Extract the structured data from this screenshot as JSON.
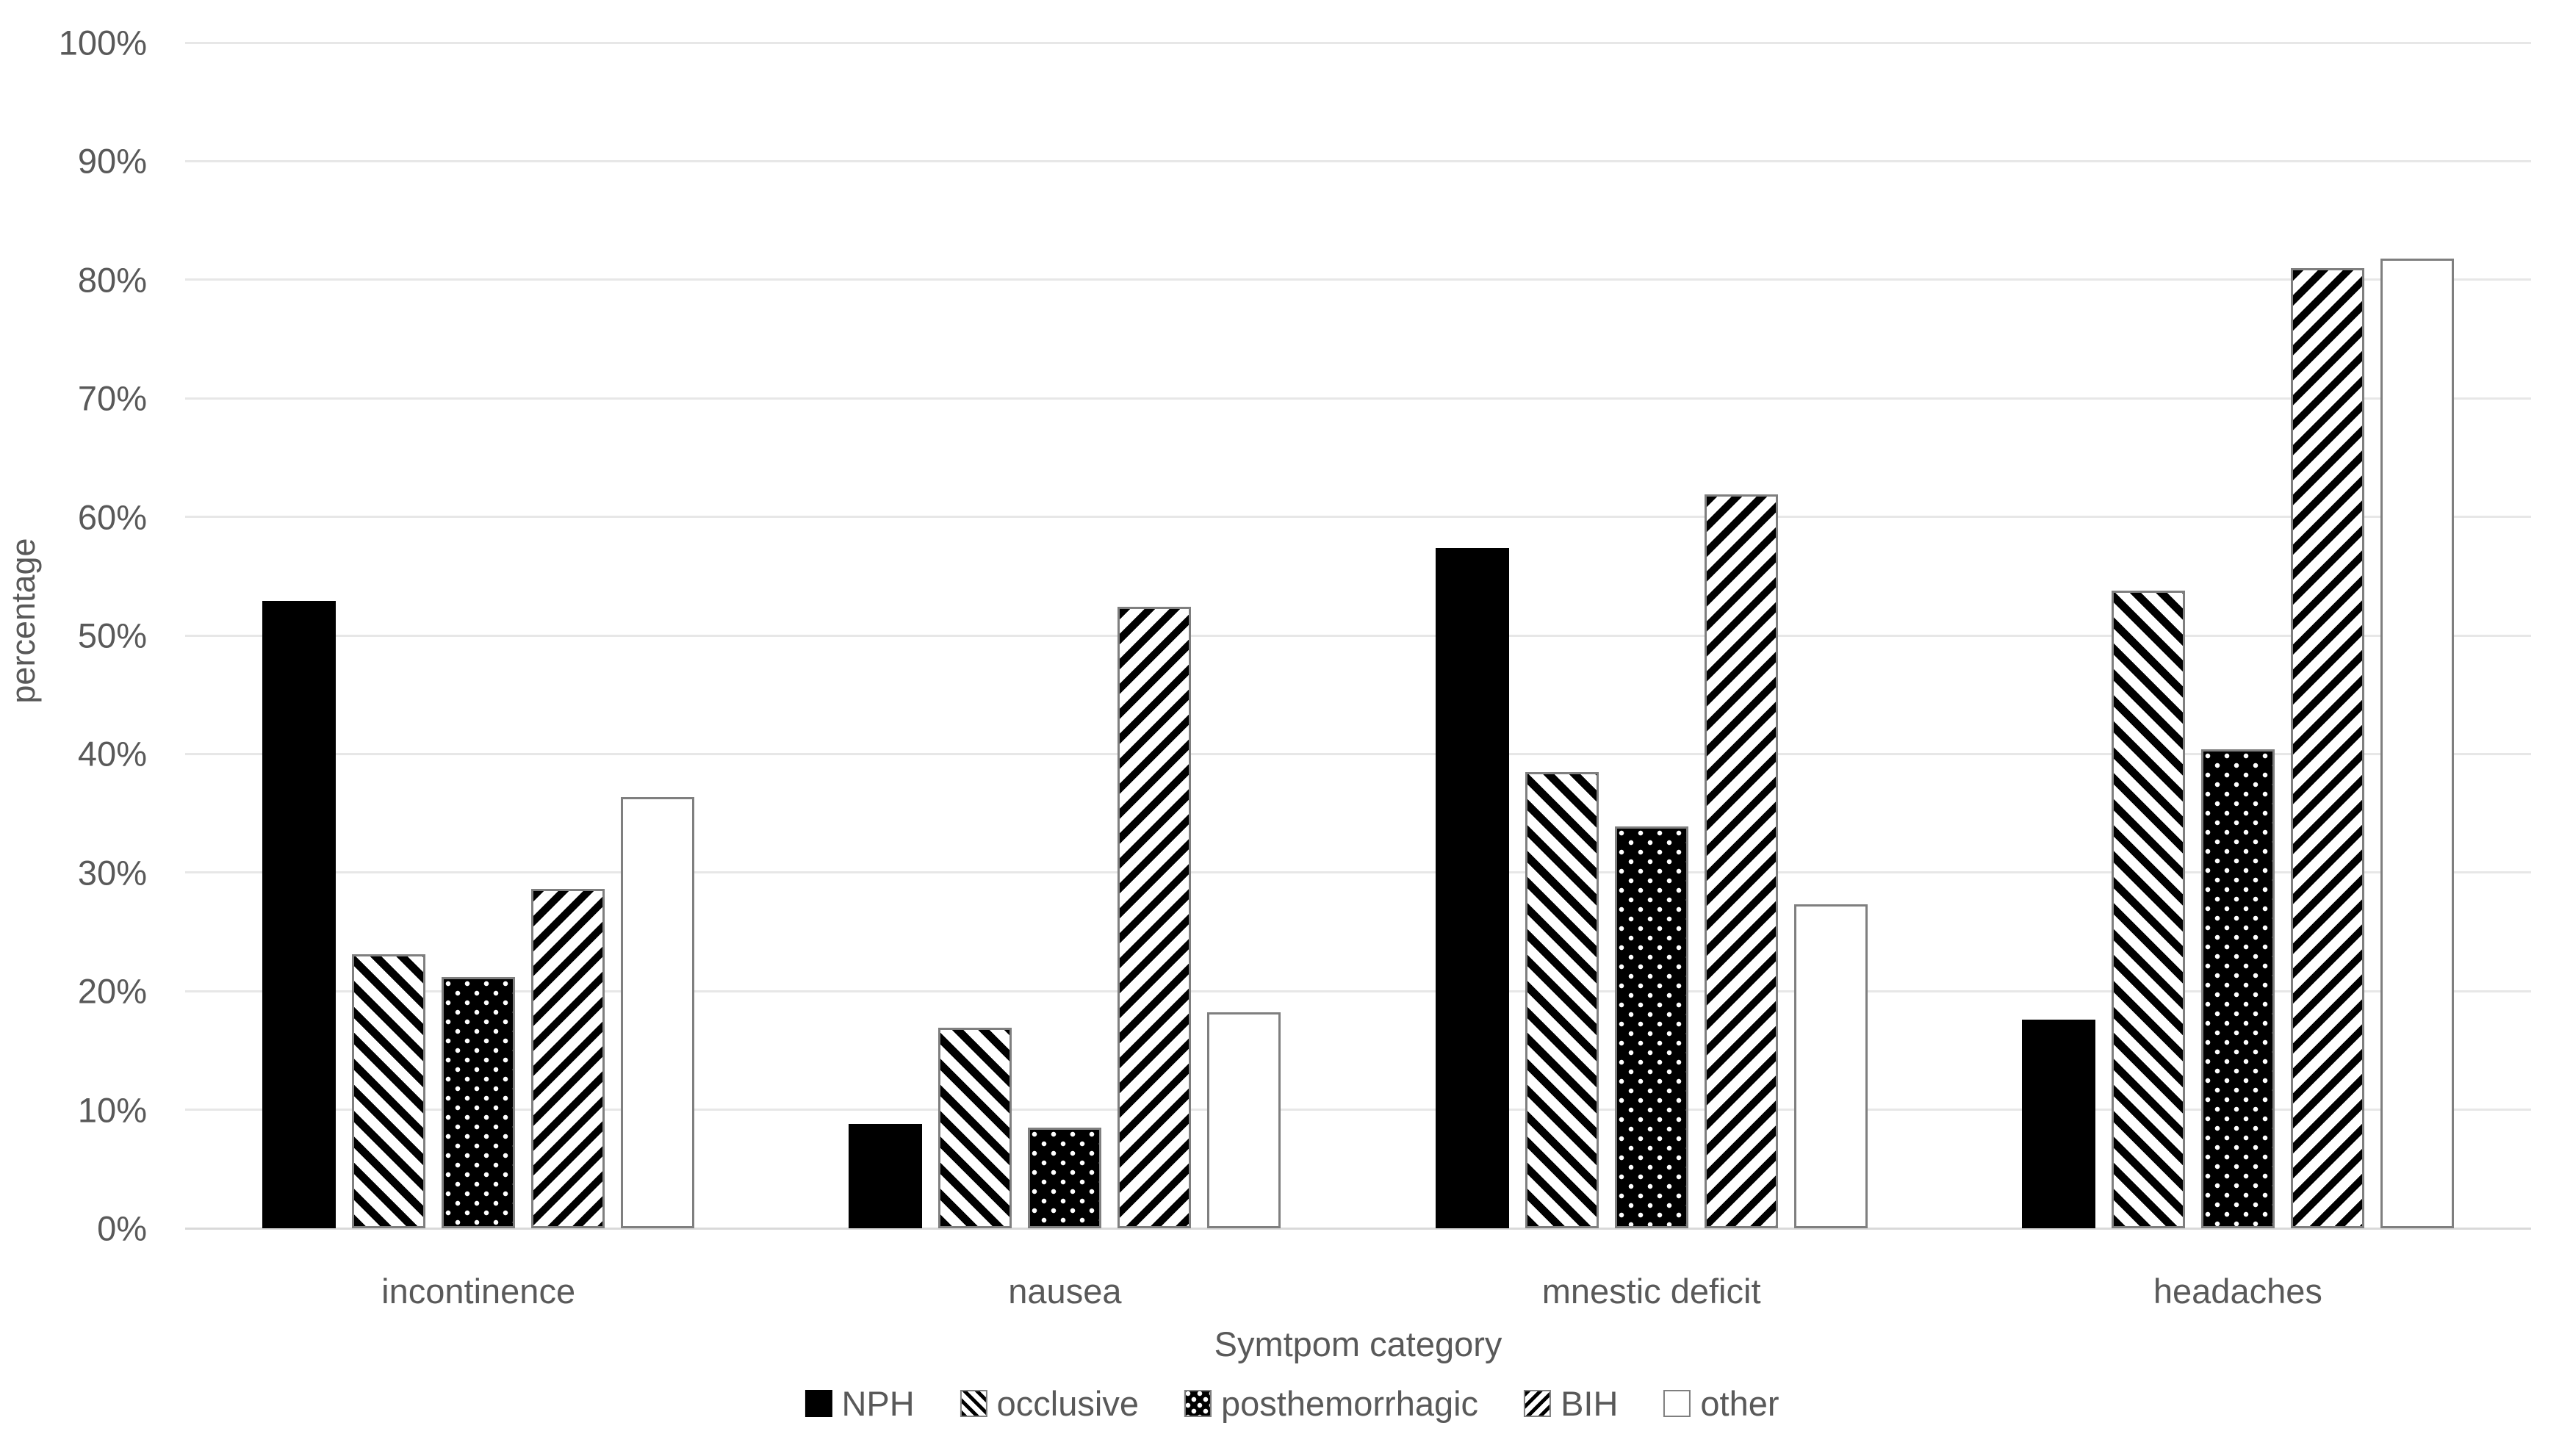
{
  "chart_data": {
    "type": "bar",
    "title": "",
    "xlabel": "Symtpom category",
    "ylabel": "percentage",
    "categories": [
      "incontinence",
      "nausea",
      "mnestic deficit",
      "headaches"
    ],
    "series": [
      {
        "name": "NPH",
        "pattern": "solid",
        "values": [
          52.9,
          8.8,
          57.4,
          17.6
        ]
      },
      {
        "name": "occlusive",
        "pattern": "diagonal-down",
        "values": [
          23.1,
          16.9,
          38.5,
          53.8
        ]
      },
      {
        "name": "posthemorrhagic",
        "pattern": "black-dots",
        "values": [
          21.2,
          8.5,
          33.9,
          40.4
        ]
      },
      {
        "name": "BIH",
        "pattern": "diagonal-up",
        "values": [
          28.6,
          52.4,
          61.9,
          81.0
        ]
      },
      {
        "name": "other",
        "pattern": "white-outline",
        "values": [
          36.4,
          18.2,
          27.3,
          81.8
        ]
      }
    ],
    "ylim": [
      0,
      100
    ],
    "yticks": [
      {
        "value": 0,
        "label": "0%"
      },
      {
        "value": 10,
        "label": "10%"
      },
      {
        "value": 20,
        "label": "20%"
      },
      {
        "value": 30,
        "label": "30%"
      },
      {
        "value": 40,
        "label": "40%"
      },
      {
        "value": 50,
        "label": "50%"
      },
      {
        "value": 60,
        "label": "60%"
      },
      {
        "value": 70,
        "label": "70%"
      },
      {
        "value": 80,
        "label": "80%"
      },
      {
        "value": 90,
        "label": "90%"
      },
      {
        "value": 100,
        "label": "100%"
      }
    ],
    "grid": true,
    "legend_position": "bottom"
  },
  "colors": {
    "bar_fill": "#000000",
    "bar_border": "#7F7F7F",
    "text": "#595959",
    "gridline": "#E7E7E7",
    "baseline": "#D9D9D9",
    "background": "#FFFFFF"
  }
}
